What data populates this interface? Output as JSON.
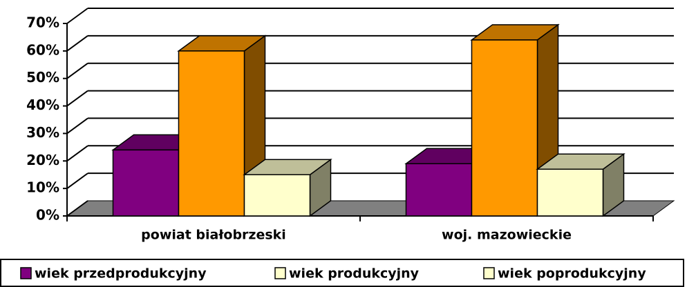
{
  "chart_data": {
    "type": "bar3d",
    "categories": [
      "powiat białobrzeski",
      "woj. mazowieckie"
    ],
    "series": [
      {
        "name": "wiek przedprodukcyjny",
        "color": "#800080",
        "legend_color": "#800080",
        "values": [
          24,
          19
        ]
      },
      {
        "name": "wiek produkcyjny",
        "color": "#ff9900",
        "legend_color": "#ffffcc",
        "values": [
          60,
          64
        ]
      },
      {
        "name": "wiek poprodukcyjny",
        "color": "#ffffcc",
        "legend_color": "#ffffcc",
        "values": [
          15,
          17
        ]
      }
    ],
    "ylim": [
      0,
      70
    ],
    "yticks": [
      {
        "value": 0,
        "label": "0%"
      },
      {
        "value": 10,
        "label": "10%"
      },
      {
        "value": 20,
        "label": "20%"
      },
      {
        "value": 30,
        "label": "30%"
      },
      {
        "value": 40,
        "label": "40%"
      },
      {
        "value": 50,
        "label": "50%"
      },
      {
        "value": 60,
        "label": "60%"
      },
      {
        "value": 70,
        "label": "70%"
      }
    ],
    "grid": true,
    "legend": "bottom"
  }
}
